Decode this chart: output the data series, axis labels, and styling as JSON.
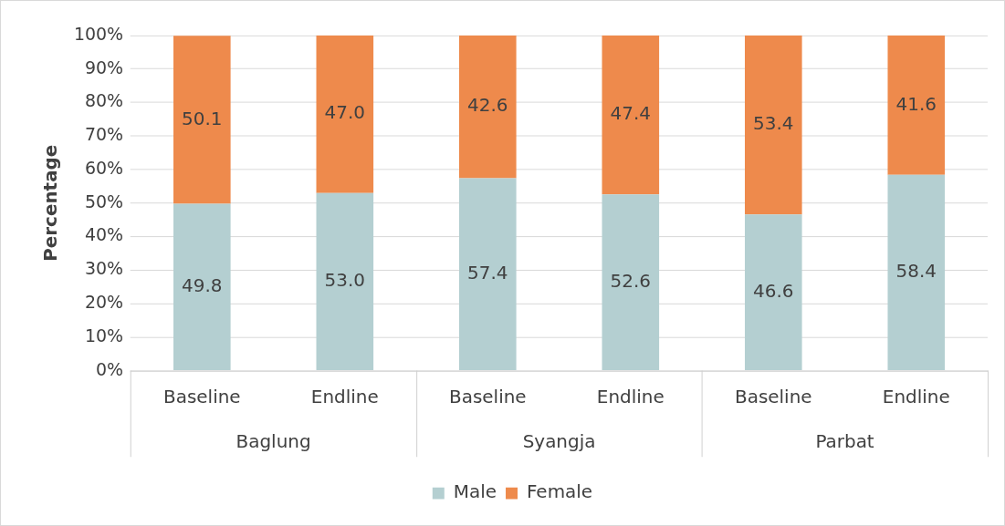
{
  "chart_data": {
    "type": "bar",
    "stacked": true,
    "ylabel": "Percentage",
    "categories": [
      "Baseline",
      "Endline",
      "Baseline",
      "Endline",
      "Baseline",
      "Endline"
    ],
    "annotations": [
      "Baglung",
      "Syangja",
      "Parbat"
    ],
    "series": [
      {
        "name": "Male",
        "color": "#b4cfd1",
        "values": [
          49.8,
          53.0,
          57.4,
          52.6,
          46.6,
          58.4
        ],
        "value_labels": [
          "49.8",
          "53.0",
          "57.4",
          "52.6",
          "46.6",
          "58.4"
        ]
      },
      {
        "name": "Female",
        "color": "#ee8a4c",
        "values": [
          50.1,
          47.0,
          42.6,
          47.4,
          53.4,
          41.6
        ],
        "value_labels": [
          "50.1",
          "47.0",
          "42.6",
          "47.4",
          "53.4",
          "41.6"
        ]
      }
    ],
    "ylim": [
      0,
      100
    ],
    "yticks": [
      {
        "value": 0,
        "label": "0%"
      },
      {
        "value": 10,
        "label": "10%"
      },
      {
        "value": 20,
        "label": "20%"
      },
      {
        "value": 30,
        "label": "30%"
      },
      {
        "value": 40,
        "label": "40%"
      },
      {
        "value": 50,
        "label": "50%"
      },
      {
        "value": 60,
        "label": "60%"
      },
      {
        "value": 70,
        "label": "70%"
      },
      {
        "value": 80,
        "label": "80%"
      },
      {
        "value": 90,
        "label": "90%"
      },
      {
        "value": 100,
        "label": "100%"
      }
    ],
    "grid": "y",
    "legend": "bottom"
  }
}
